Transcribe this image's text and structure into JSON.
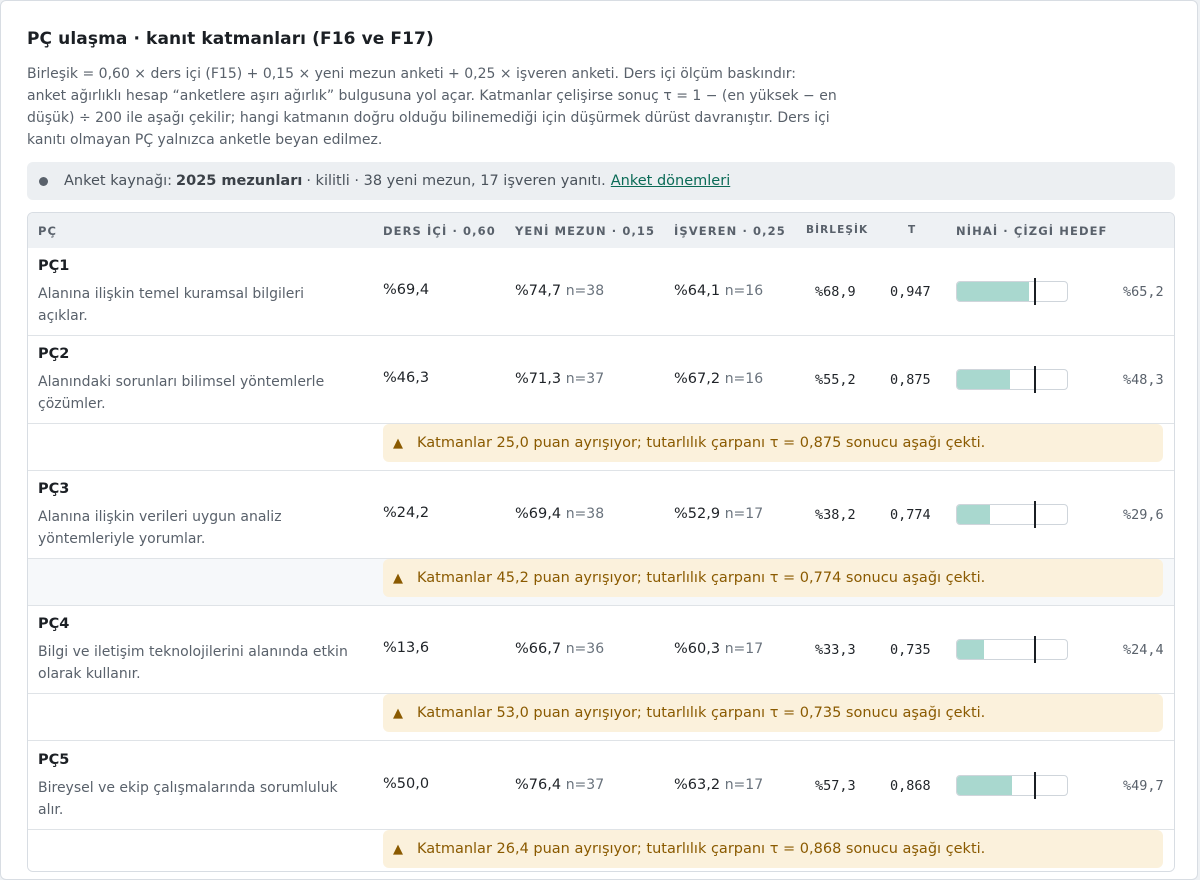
{
  "title": "PÇ ulaşma · kanıt katmanları (F16 ve F17)",
  "description": "Birleşik = 0,60 × ders içi (F15) + 0,15 × yeni mezun anketi + 0,25 × işveren anketi. Ders içi ölçüm baskındır: anket ağırlıklı hesap “anketlere aşırı ağırlık” bulgusuna yol açar. Katmanlar çelişirse sonuç τ = 1 − (en yüksek − en düşük) ÷ 200 ile aşağı çekilir; hangi katmanın doğru olduğu bilinemediği için düşürmek dürüst davranıştır. Ders içi kanıtı olmayan PÇ yalnızca anketle beyan edilmez.",
  "banner": {
    "prefix": "Anket kaynağı:",
    "source": "2025 mezunları",
    "suffix": "· kilitli · 38 yeni mezun, 17 işveren yanıtı.",
    "link": "Anket dönemleri"
  },
  "columns": {
    "pc": "PÇ",
    "ders": "DERS İÇİ · 0,60",
    "yeni": "YENİ MEZUN · 0,15",
    "isveren": "İŞVEREN · 0,25",
    "birlesik": "BİRLEŞİK",
    "tau": "T",
    "nihai": "NİHAİ · ÇİZGİ HEDEF"
  },
  "rows": [
    {
      "code": "PÇ1",
      "desc": "Alanına ilişkin temel kuramsal bilgileri açıklar.",
      "ders": "%69,4",
      "yeni": "%74,7",
      "yeni_n": "n=38",
      "isveren": "%64,1",
      "isveren_n": "n=16",
      "birlesik": "%68,9",
      "tau": "0,947",
      "nihai": "%65,2",
      "nihai_frac": 0.652,
      "target_frac": 0.7
    },
    {
      "code": "PÇ2",
      "desc": "Alanındaki sorunları bilimsel yöntemlerle çözümler.",
      "ders": "%46,3",
      "yeni": "%71,3",
      "yeni_n": "n=37",
      "isveren": "%67,2",
      "isveren_n": "n=16",
      "birlesik": "%55,2",
      "tau": "0,875",
      "nihai": "%48,3",
      "nihai_frac": 0.483,
      "target_frac": 0.7,
      "warning": "Katmanlar 25,0 puan ayrışıyor; tutarlılık çarpanı τ = 0,875 sonucu aşağı çekti."
    },
    {
      "code": "PÇ3",
      "desc": "Alanına ilişkin verileri uygun analiz yöntemleriyle yorumlar.",
      "ders": "%24,2",
      "yeni": "%69,4",
      "yeni_n": "n=38",
      "isveren": "%52,9",
      "isveren_n": "n=17",
      "birlesik": "%38,2",
      "tau": "0,774",
      "nihai": "%29,6",
      "nihai_frac": 0.296,
      "target_frac": 0.7,
      "warning": "Katmanlar 45,2 puan ayrışıyor; tutarlılık çarpanı τ = 0,774 sonucu aşağı çekti."
    },
    {
      "code": "PÇ4",
      "desc": "Bilgi ve iletişim teknolojilerini alanında etkin olarak kullanır.",
      "ders": "%13,6",
      "yeni": "%66,7",
      "yeni_n": "n=36",
      "isveren": "%60,3",
      "isveren_n": "n=17",
      "birlesik": "%33,3",
      "tau": "0,735",
      "nihai": "%24,4",
      "nihai_frac": 0.244,
      "target_frac": 0.7,
      "warning": "Katmanlar 53,0 puan ayrışıyor; tutarlılık çarpanı τ = 0,735 sonucu aşağı çekti."
    },
    {
      "code": "PÇ5",
      "desc": "Bireysel ve ekip çalışmalarında sorumluluk alır.",
      "ders": "%50,0",
      "yeni": "%76,4",
      "yeni_n": "n=37",
      "isveren": "%63,2",
      "isveren_n": "n=17",
      "birlesik": "%57,3",
      "tau": "0,868",
      "nihai": "%49,7",
      "nihai_frac": 0.497,
      "target_frac": 0.7,
      "warning": "Katmanlar 26,4 puan ayrışıyor; tutarlılık çarpanı τ = 0,868 sonucu aşağı çekti."
    }
  ]
}
